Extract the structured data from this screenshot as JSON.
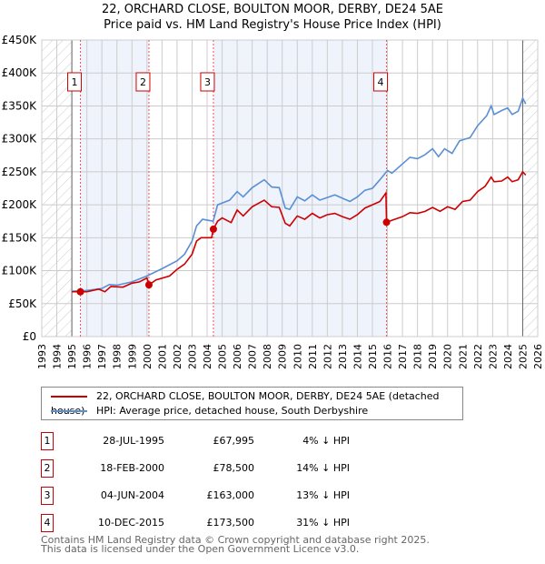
{
  "chart_data": {
    "type": "line",
    "title": "22, ORCHARD CLOSE, BOULTON MOOR, DERBY, DE24 5AE",
    "subtitle": "Price paid vs. HM Land Registry's House Price Index (HPI)",
    "xlim": [
      1993,
      2026
    ],
    "ylim": [
      0,
      450000
    ],
    "x_ticks": [
      "1993",
      "1994",
      "1995",
      "1996",
      "1997",
      "1998",
      "1999",
      "2000",
      "2001",
      "2002",
      "2003",
      "2004",
      "2005",
      "2006",
      "2007",
      "2008",
      "2009",
      "2010",
      "2011",
      "2012",
      "2013",
      "2014",
      "2015",
      "2016",
      "2017",
      "2018",
      "2019",
      "2020",
      "2021",
      "2022",
      "2023",
      "2024",
      "2025",
      "2026"
    ],
    "y_ticks": [
      {
        "v": 0,
        "l": "£0"
      },
      {
        "v": 50000,
        "l": "£50K"
      },
      {
        "v": 100000,
        "l": "£100K"
      },
      {
        "v": 150000,
        "l": "£150K"
      },
      {
        "v": 200000,
        "l": "£200K"
      },
      {
        "v": 250000,
        "l": "£250K"
      },
      {
        "v": 300000,
        "l": "£300K"
      },
      {
        "v": 350000,
        "l": "£350K"
      },
      {
        "v": 400000,
        "l": "£400K"
      },
      {
        "v": 450000,
        "l": "£450K"
      }
    ],
    "series": [
      {
        "name": "22, ORCHARD CLOSE, BOULTON MOOR, DERBY, DE24 5AE (detached house)",
        "color": "#cc0000",
        "points": [
          [
            1995,
            68
          ],
          [
            1996,
            68
          ],
          [
            1996.8,
            72
          ],
          [
            1997.2,
            68
          ],
          [
            1997.6,
            76
          ],
          [
            1998.4,
            75
          ],
          [
            1999,
            81
          ],
          [
            1999.5,
            83
          ],
          [
            2000,
            89
          ],
          [
            2000.13,
            78.5
          ],
          [
            2000.6,
            86
          ],
          [
            2001.5,
            92
          ],
          [
            2002,
            102
          ],
          [
            2002.5,
            110
          ],
          [
            2003,
            125
          ],
          [
            2003.3,
            145
          ],
          [
            2003.6,
            150
          ],
          [
            2004.3,
            150
          ],
          [
            2004.42,
            163
          ],
          [
            2004.7,
            175
          ],
          [
            2005,
            180
          ],
          [
            2005.6,
            173
          ],
          [
            2006,
            192
          ],
          [
            2006.4,
            183
          ],
          [
            2007,
            197
          ],
          [
            2007.8,
            207
          ],
          [
            2008.3,
            197
          ],
          [
            2008.8,
            196
          ],
          [
            2009.2,
            172
          ],
          [
            2009.5,
            168
          ],
          [
            2010,
            183
          ],
          [
            2010.5,
            178
          ],
          [
            2011,
            187
          ],
          [
            2011.5,
            180
          ],
          [
            2012,
            185
          ],
          [
            2012.5,
            187
          ],
          [
            2013,
            182
          ],
          [
            2013.5,
            178
          ],
          [
            2014,
            185
          ],
          [
            2014.5,
            195
          ],
          [
            2015,
            200
          ],
          [
            2015.5,
            205
          ],
          [
            2015.9,
            218
          ],
          [
            2015.94,
            173.5
          ],
          [
            2016.5,
            178
          ],
          [
            2017,
            182
          ],
          [
            2017.5,
            188
          ],
          [
            2018,
            187
          ],
          [
            2018.5,
            190
          ],
          [
            2019,
            196
          ],
          [
            2019.5,
            190
          ],
          [
            2020,
            197
          ],
          [
            2020.5,
            193
          ],
          [
            2021,
            205
          ],
          [
            2021.5,
            207
          ],
          [
            2022,
            220
          ],
          [
            2022.5,
            228
          ],
          [
            2022.9,
            242
          ],
          [
            2023.1,
            235
          ],
          [
            2023.6,
            236
          ],
          [
            2024,
            242
          ],
          [
            2024.3,
            235
          ],
          [
            2024.7,
            238
          ],
          [
            2025,
            250
          ],
          [
            2025.2,
            245
          ]
        ]
      },
      {
        "name": "HPI: Average price, detached house, South Derbyshire",
        "color": "#5b8fd4",
        "points": [
          [
            1995,
            69
          ],
          [
            1996,
            70
          ],
          [
            1997,
            73
          ],
          [
            1997.5,
            79
          ],
          [
            1998,
            78
          ],
          [
            1999,
            83
          ],
          [
            2000,
            92
          ],
          [
            2001,
            103
          ],
          [
            2002,
            115
          ],
          [
            2002.5,
            125
          ],
          [
            2003,
            145
          ],
          [
            2003.3,
            168
          ],
          [
            2003.7,
            178
          ],
          [
            2004.4,
            175
          ],
          [
            2004.7,
            200
          ],
          [
            2005.5,
            207
          ],
          [
            2006,
            220
          ],
          [
            2006.4,
            212
          ],
          [
            2007,
            226
          ],
          [
            2007.8,
            238
          ],
          [
            2008.3,
            227
          ],
          [
            2008.8,
            226
          ],
          [
            2009.2,
            195
          ],
          [
            2009.5,
            193
          ],
          [
            2010,
            212
          ],
          [
            2010.5,
            206
          ],
          [
            2011,
            215
          ],
          [
            2011.5,
            207
          ],
          [
            2012,
            211
          ],
          [
            2012.5,
            215
          ],
          [
            2013,
            210
          ],
          [
            2013.5,
            205
          ],
          [
            2014,
            212
          ],
          [
            2014.5,
            222
          ],
          [
            2015,
            225
          ],
          [
            2015.5,
            238
          ],
          [
            2016,
            252
          ],
          [
            2016.3,
            248
          ],
          [
            2017,
            262
          ],
          [
            2017.5,
            272
          ],
          [
            2018,
            270
          ],
          [
            2018.5,
            276
          ],
          [
            2019,
            285
          ],
          [
            2019.4,
            273
          ],
          [
            2019.8,
            285
          ],
          [
            2020.3,
            278
          ],
          [
            2020.8,
            297
          ],
          [
            2021.5,
            302
          ],
          [
            2022,
            320
          ],
          [
            2022.6,
            335
          ],
          [
            2022.9,
            350
          ],
          [
            2023.1,
            337
          ],
          [
            2023.6,
            343
          ],
          [
            2024,
            347
          ],
          [
            2024.3,
            337
          ],
          [
            2024.7,
            342
          ],
          [
            2025,
            362
          ],
          [
            2025.2,
            353
          ]
        ]
      }
    ],
    "y_units": "thousands GBP",
    "sales": [
      {
        "n": "1",
        "x": 1995.57,
        "date": "28-JUL-1995",
        "price": 67995,
        "price_label": "£67,995",
        "hpi": "4% ↓ HPI"
      },
      {
        "n": "2",
        "x": 2000.13,
        "date": "18-FEB-2000",
        "price": 78500,
        "price_label": "£78,500",
        "hpi": "14% ↓ HPI"
      },
      {
        "n": "3",
        "x": 2004.42,
        "date": "04-JUN-2004",
        "price": 163000,
        "price_label": "£163,000",
        "hpi": "13% ↓ HPI"
      },
      {
        "n": "4",
        "x": 2015.94,
        "date": "10-DEC-2015",
        "price": 173500,
        "price_label": "£173,500",
        "hpi": "31% ↓ HPI"
      }
    ],
    "data_range": [
      1995,
      2025
    ]
  },
  "footer": [
    "Contains HM Land Registry data © Crown copyright and database right 2025.",
    "This data is licensed under the Open Government Licence v3.0."
  ]
}
